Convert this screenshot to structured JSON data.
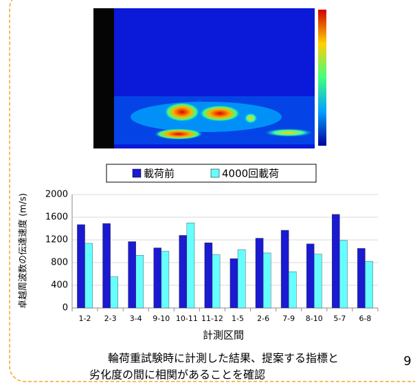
{
  "chart_data": {
    "type": "bar",
    "y_label": "卓越周波数の伝達速度 (m/s)",
    "x_label": "計測区間",
    "categories": [
      "1-2",
      "2-3",
      "3-4",
      "9-10",
      "10-11",
      "11-12",
      "1-5",
      "2-6",
      "7-9",
      "8-10",
      "5-7",
      "6-8"
    ],
    "series": [
      {
        "name": "載荷前",
        "color": "#1a1ad0",
        "values": [
          1470,
          1490,
          1170,
          1060,
          1280,
          1150,
          870,
          1230,
          1370,
          1130,
          1650,
          1050
        ]
      },
      {
        "name": "4000回載荷",
        "color": "#66ffff",
        "values": [
          1140,
          550,
          930,
          1000,
          1500,
          940,
          1030,
          970,
          640,
          950,
          1190,
          820
        ]
      }
    ],
    "ylim": [
      0,
      2000
    ],
    "yticks": [
      0,
      400,
      800,
      1200,
      1600,
      2000
    ],
    "grid": true,
    "legend": "top"
  },
  "caption": [
    "輪荷重試験時に計測した結果、提案する指標と",
    "劣化度の間に相関があることを確認"
  ],
  "page_number": "9"
}
